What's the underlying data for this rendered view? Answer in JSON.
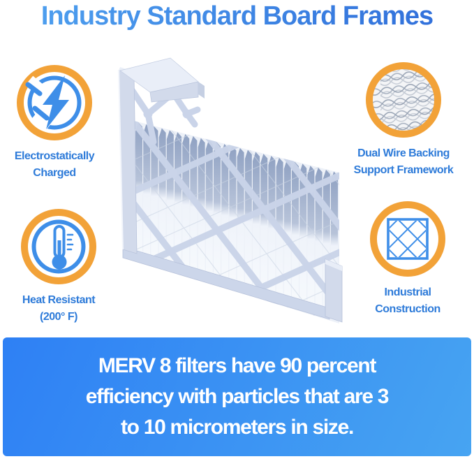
{
  "title": "Industry Standard Board Frames",
  "features": {
    "electrostatic": {
      "lines": [
        "Electrostatically",
        "Charged"
      ]
    },
    "wire": {
      "lines": [
        "Dual Wire Backing",
        "Support Framework"
      ]
    },
    "heat": {
      "lines": [
        "Heat Resistant",
        "(200° F)"
      ]
    },
    "industrial": {
      "lines": [
        "Industrial",
        "Construction"
      ]
    }
  },
  "banner": {
    "lines": [
      "MERV 8 filters have 90 percent",
      "efficiency with particles that are 3",
      "to 10 micrometers in size."
    ]
  },
  "illustration": {
    "name": "pleated-air-filter"
  },
  "colors": {
    "accent_orange": "#F2A238",
    "icon_blue": "#3E8EE8",
    "label_blue": "#2E7BD9",
    "title_from": "#4FA2F0",
    "title_to": "#2F6CD9",
    "banner_from": "#2E80F4",
    "banner_to": "#47A4F2",
    "banner_text": "#FFFFFF",
    "frame": "#D2DAEB",
    "lattice": "#CAD4E9",
    "pleat_dark": "#93A4C3"
  }
}
